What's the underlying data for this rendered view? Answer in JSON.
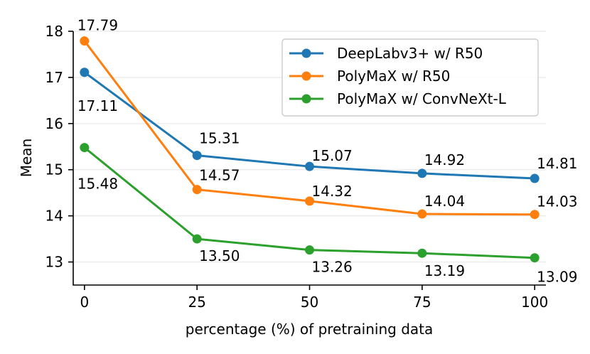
{
  "chart_data": {
    "type": "line",
    "title": "",
    "xlabel": "percentage (%) of pretraining data",
    "ylabel": "Mean",
    "x": [
      0,
      25,
      50,
      75,
      100
    ],
    "xticks": [
      "0",
      "25",
      "50",
      "75",
      "100"
    ],
    "yticks": [
      "13",
      "14",
      "15",
      "16",
      "17",
      "18"
    ],
    "xlim": [
      -2.5,
      102.5
    ],
    "ylim": [
      12.5,
      18.0
    ],
    "grid": "horizontal",
    "legend_position": "top-right",
    "series": [
      {
        "name": "DeepLabv3+ w/ R50",
        "color": "#1f77b4",
        "values": [
          17.11,
          15.31,
          15.07,
          14.92,
          14.81
        ],
        "labels": [
          "17.11",
          "15.31",
          "15.07",
          "14.92",
          "14.81"
        ]
      },
      {
        "name": "PolyMaX w/ R50",
        "color": "#ff7f0e",
        "values": [
          17.79,
          14.57,
          14.32,
          14.04,
          14.03
        ],
        "labels": [
          "17.79",
          "14.57",
          "14.32",
          "14.04",
          "14.03"
        ]
      },
      {
        "name": "PolyMaX w/ ConvNeXt-L",
        "color": "#2ca02c",
        "values": [
          15.48,
          13.5,
          13.26,
          13.19,
          13.09
        ],
        "labels": [
          "15.48",
          "13.50",
          "13.26",
          "13.19",
          "13.09"
        ]
      }
    ]
  }
}
